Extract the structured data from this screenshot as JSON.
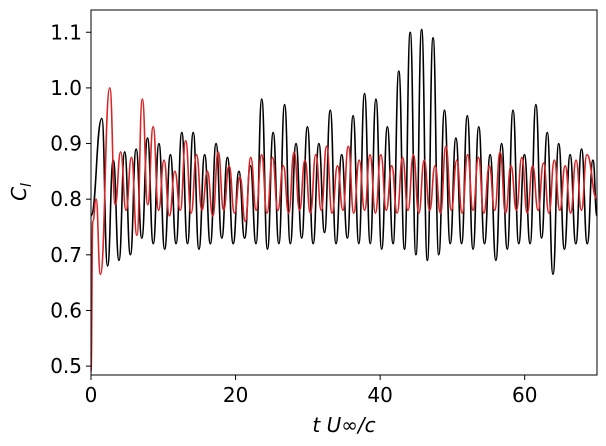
{
  "chart_data": {
    "type": "line",
    "xlabel": "t U∞/c",
    "ylabel": [
      "C",
      "l"
    ],
    "xlim": [
      0,
      70
    ],
    "xticks": [
      0,
      20,
      40,
      60
    ],
    "ylim": [
      0.484,
      1.14
    ],
    "yticks": [
      0.5,
      0.6,
      0.7,
      0.8,
      0.9,
      {
        "value": 1,
        "label": "1.0"
      },
      1.1
    ],
    "grid": false,
    "series": [
      {
        "color": "#000000",
        "x": [
          0,
          1.5,
          2.29,
          3.08,
          3.87,
          4.66,
          5.45,
          6.24,
          7.03,
          7.82,
          8.61,
          9.4,
          10.19,
          10.98,
          11.77,
          12.56,
          13.35,
          14.14,
          14.93,
          15.72,
          16.51,
          17.3,
          18.09,
          18.88,
          19.67,
          20.46,
          21.25,
          22.04,
          22.83,
          23.62,
          24.41,
          25.2,
          25.99,
          26.78,
          27.57,
          28.36,
          29.15,
          29.94,
          30.73,
          31.52,
          32.31,
          33.1,
          33.89,
          34.68,
          35.47,
          36.26,
          37.05,
          37.84,
          38.63,
          39.42,
          40.21,
          41.0,
          41.79,
          42.58,
          43.37,
          44.16,
          44.95,
          45.74,
          46.53,
          47.32,
          48.11,
          48.9,
          49.69,
          50.48,
          51.27,
          52.06,
          52.85,
          53.64,
          54.43,
          55.22,
          56.01,
          56.8,
          57.59,
          58.38,
          59.17,
          59.96,
          60.75,
          61.54,
          62.33,
          63.12,
          63.91,
          64.7,
          65.49,
          66.28,
          67.07,
          67.86,
          68.65,
          69.44,
          70
        ],
        "values": [
          0.77,
          0.945,
          0.68,
          0.87,
          0.69,
          0.885,
          0.7,
          0.89,
          0.73,
          0.91,
          0.72,
          0.9,
          0.71,
          0.88,
          0.72,
          0.92,
          0.72,
          0.92,
          0.71,
          0.88,
          0.72,
          0.9,
          0.73,
          0.875,
          0.72,
          0.85,
          0.73,
          0.86,
          0.72,
          0.98,
          0.71,
          0.92,
          0.72,
          0.97,
          0.72,
          0.9,
          0.73,
          0.93,
          0.72,
          0.9,
          0.74,
          0.96,
          0.72,
          0.88,
          0.73,
          0.95,
          0.72,
          0.99,
          0.72,
          0.98,
          0.71,
          0.93,
          0.72,
          1.03,
          0.71,
          1.1,
          0.7,
          1.105,
          0.69,
          1.09,
          0.7,
          0.96,
          0.72,
          0.91,
          0.72,
          0.95,
          0.71,
          0.93,
          0.72,
          0.88,
          0.69,
          0.9,
          0.71,
          0.96,
          0.72,
          0.88,
          0.72,
          0.97,
          0.73,
          0.92,
          0.665,
          0.9,
          0.71,
          0.88,
          0.72,
          0.89,
          0.72,
          0.87,
          0.77
        ]
      },
      {
        "color": "#d62728",
        "x": [
          0,
          0.25,
          0.7,
          1.3,
          2.6,
          3.35,
          4.1,
          4.85,
          5.6,
          6.35,
          7.1,
          7.85,
          8.6,
          9.35,
          10.1,
          10.85,
          11.6,
          12.35,
          13.1,
          13.85,
          14.6,
          15.35,
          16.1,
          16.85,
          17.6,
          18.35,
          19.1,
          19.85,
          20.6,
          21.35,
          22.1,
          22.85,
          23.6,
          24.35,
          25.1,
          25.85,
          26.6,
          27.35,
          28.1,
          28.85,
          29.6,
          30.35,
          31.1,
          31.85,
          32.6,
          33.35,
          34.1,
          34.85,
          35.6,
          36.35,
          37.1,
          37.85,
          38.6,
          39.35,
          40.1,
          40.85,
          41.6,
          42.35,
          43.1,
          43.85,
          44.6,
          45.35,
          46.1,
          46.85,
          47.6,
          48.35,
          49.1,
          49.85,
          50.6,
          51.35,
          52.1,
          52.85,
          53.6,
          54.35,
          55.1,
          55.85,
          56.6,
          57.35,
          58.1,
          58.85,
          59.6,
          60.35,
          61.1,
          61.85,
          62.6,
          63.35,
          64.1,
          64.85,
          65.6,
          66.35,
          67.1,
          67.85,
          68.6,
          70
        ],
        "values": [
          0.49,
          0.76,
          0.8,
          0.665,
          1.0,
          0.79,
          0.885,
          0.78,
          0.875,
          0.735,
          0.98,
          0.79,
          0.93,
          0.78,
          0.87,
          0.77,
          0.85,
          0.78,
          0.905,
          0.775,
          0.88,
          0.78,
          0.85,
          0.77,
          0.885,
          0.78,
          0.86,
          0.775,
          0.84,
          0.76,
          0.875,
          0.78,
          0.88,
          0.775,
          0.875,
          0.78,
          0.86,
          0.775,
          0.885,
          0.78,
          0.87,
          0.775,
          0.88,
          0.78,
          0.895,
          0.775,
          0.86,
          0.78,
          0.895,
          0.775,
          0.87,
          0.78,
          0.88,
          0.775,
          0.88,
          0.78,
          0.86,
          0.775,
          0.875,
          0.78,
          0.88,
          0.775,
          0.87,
          0.78,
          0.86,
          0.775,
          0.895,
          0.78,
          0.87,
          0.775,
          0.88,
          0.78,
          0.875,
          0.775,
          0.86,
          0.78,
          0.885,
          0.775,
          0.86,
          0.78,
          0.875,
          0.775,
          0.86,
          0.78,
          0.865,
          0.775,
          0.87,
          0.78,
          0.86,
          0.775,
          0.87,
          0.78,
          0.88,
          0.8
        ]
      }
    ]
  }
}
